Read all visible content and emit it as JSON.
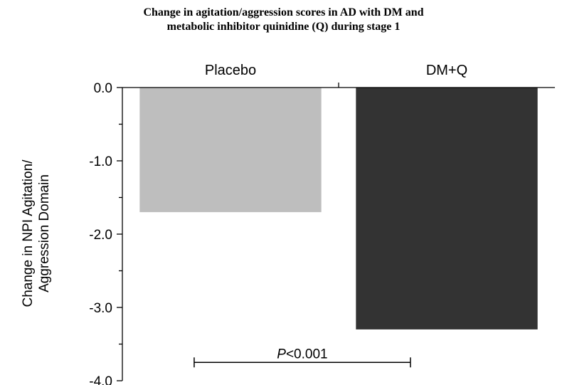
{
  "chart_data": {
    "type": "bar",
    "title_lines": [
      "Change in agitation/aggression scores in AD with DM and",
      "metabolic inhibitor quinidine (Q) during stage 1"
    ],
    "ylabel_lines": [
      "Change in NPI Agitation/",
      "Aggression Domain"
    ],
    "categories": [
      "Placebo",
      "DM+Q"
    ],
    "values": [
      -1.7,
      -3.3
    ],
    "bar_colors": [
      "#bebebe",
      "#333333"
    ],
    "ylim": [
      -4.0,
      0.0
    ],
    "yticks": [
      {
        "value": 0.0,
        "label": "0.0"
      },
      {
        "value": -1.0,
        "label": "-1.0"
      },
      {
        "value": -2.0,
        "label": "-2.0"
      },
      {
        "value": -3.0,
        "label": "-3.0"
      },
      {
        "value": -4.0,
        "label": "-4.0"
      }
    ],
    "category_axis_position": "top",
    "grid": false,
    "annotation": {
      "italic_part": "P",
      "rest": "<0.001",
      "y_value": -3.75
    }
  }
}
